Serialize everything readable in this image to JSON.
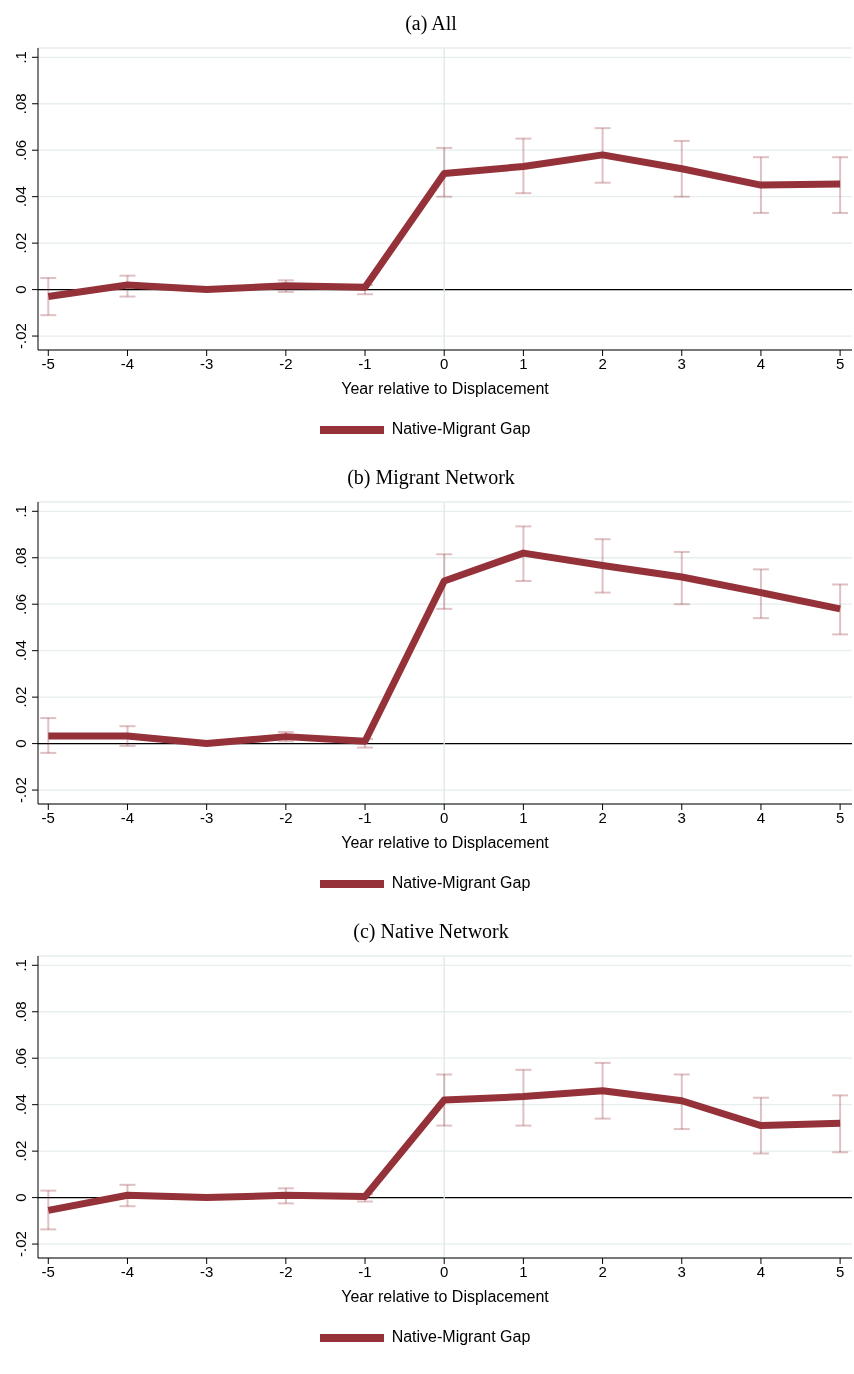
{
  "chart_data": [
    {
      "type": "line",
      "title": "(a)  All",
      "xlabel": "Year relative to Displacement",
      "x": [
        -5,
        -4,
        -3,
        -2,
        -1,
        0,
        1,
        2,
        3,
        4,
        5
      ],
      "xlim": [
        -5.13,
        5.15
      ],
      "xticks": [
        -5,
        -4,
        -3,
        -2,
        -1,
        0,
        1,
        2,
        3,
        4,
        5
      ],
      "ylim": [
        -0.026,
        0.104
      ],
      "yticks": [
        {
          "value": -0.02,
          "label": "-.02"
        },
        {
          "value": 0,
          "label": "0"
        },
        {
          "value": 0.02,
          "label": ".02"
        },
        {
          "value": 0.04,
          "label": ".04"
        },
        {
          "value": 0.06,
          "label": ".06"
        },
        {
          "value": 0.08,
          "label": ".08"
        },
        {
          "value": 0.1,
          "label": ".1"
        }
      ],
      "grid": "y",
      "legend": "bottom",
      "marker": "none",
      "line_style": "solid",
      "ref_lines": [
        {
          "axis": "y",
          "value": 0,
          "color": "#000000"
        },
        {
          "axis": "x",
          "value": 0,
          "color": "#dde9e9"
        }
      ],
      "series": [
        {
          "name": "Native-Migrant Gap",
          "color": "#943139",
          "values": [
            -0.003,
            0.002,
            0,
            0.0017,
            0.001,
            0.05,
            0.053,
            0.058,
            0.052,
            0.045,
            0.0455
          ],
          "errors": [
            [
              -0.011,
              0.005
            ],
            [
              -0.003,
              0.006
            ],
            null,
            [
              -0.001,
              0.004
            ],
            [
              -0.002,
              0.002
            ],
            [
              0.04,
              0.061
            ],
            [
              0.0415,
              0.065
            ],
            [
              0.046,
              0.0695
            ],
            [
              0.04,
              0.064
            ],
            [
              0.033,
              0.057
            ],
            [
              0.033,
              0.057
            ]
          ]
        }
      ]
    },
    {
      "type": "line",
      "title": "(b)  Migrant Network",
      "xlabel": "Year relative to Displacement",
      "x": [
        -5,
        -4,
        -3,
        -2,
        -1,
        0,
        1,
        2,
        3,
        4,
        5
      ],
      "xlim": [
        -5.13,
        5.15
      ],
      "xticks": [
        -5,
        -4,
        -3,
        -2,
        -1,
        0,
        1,
        2,
        3,
        4,
        5
      ],
      "ylim": [
        -0.026,
        0.104
      ],
      "yticks": [
        {
          "value": -0.02,
          "label": "-.02"
        },
        {
          "value": 0,
          "label": "0"
        },
        {
          "value": 0.02,
          "label": ".02"
        },
        {
          "value": 0.04,
          "label": ".04"
        },
        {
          "value": 0.06,
          "label": ".06"
        },
        {
          "value": 0.08,
          "label": ".08"
        },
        {
          "value": 0.1,
          "label": ".1"
        }
      ],
      "grid": "y",
      "legend": "bottom",
      "marker": "none",
      "line_style": "solid",
      "ref_lines": [
        {
          "axis": "y",
          "value": 0,
          "color": "#000000"
        },
        {
          "axis": "x",
          "value": 0,
          "color": "#dde9e9"
        }
      ],
      "series": [
        {
          "name": "Native-Migrant Gap",
          "color": "#943139",
          "values": [
            0.0033,
            0.0033,
            0,
            0.003,
            0.001,
            0.07,
            0.082,
            0.0767,
            0.0717,
            0.065,
            0.058
          ],
          "errors": [
            [
              -0.004,
              0.011
            ],
            [
              -0.001,
              0.0075
            ],
            null,
            [
              0.001,
              0.005
            ],
            [
              -0.0017,
              0.002
            ],
            [
              0.058,
              0.0815
            ],
            [
              0.07,
              0.0935
            ],
            [
              0.065,
              0.088
            ],
            [
              0.06,
              0.0825
            ],
            [
              0.054,
              0.075
            ],
            [
              0.047,
              0.0685
            ]
          ]
        }
      ]
    },
    {
      "type": "line",
      "title": "(c)  Native Network",
      "xlabel": "Year relative to Displacement",
      "x": [
        -5,
        -4,
        -3,
        -2,
        -1,
        0,
        1,
        2,
        3,
        4,
        5
      ],
      "xlim": [
        -5.13,
        5.15
      ],
      "xticks": [
        -5,
        -4,
        -3,
        -2,
        -1,
        0,
        1,
        2,
        3,
        4,
        5
      ],
      "ylim": [
        -0.026,
        0.104
      ],
      "yticks": [
        {
          "value": -0.02,
          "label": "-.02"
        },
        {
          "value": 0,
          "label": "0"
        },
        {
          "value": 0.02,
          "label": ".02"
        },
        {
          "value": 0.04,
          "label": ".04"
        },
        {
          "value": 0.06,
          "label": ".06"
        },
        {
          "value": 0.08,
          "label": ".08"
        },
        {
          "value": 0.1,
          "label": ".1"
        }
      ],
      "grid": "y",
      "legend": "bottom",
      "marker": "none",
      "line_style": "solid",
      "ref_lines": [
        {
          "axis": "y",
          "value": 0,
          "color": "#000000"
        },
        {
          "axis": "x",
          "value": 0,
          "color": "#dde9e9"
        }
      ],
      "series": [
        {
          "name": "Native-Migrant Gap",
          "color": "#943139",
          "values": [
            -0.0055,
            0.001,
            0,
            0.001,
            0.0005,
            0.042,
            0.0435,
            0.046,
            0.0417,
            0.031,
            0.032
          ],
          "errors": [
            [
              -0.0137,
              0.003
            ],
            [
              -0.0037,
              0.0055
            ],
            null,
            [
              -0.0025,
              0.004
            ],
            [
              -0.0017,
              0.0015
            ],
            [
              0.031,
              0.053
            ],
            [
              0.031,
              0.055
            ],
            [
              0.034,
              0.058
            ],
            [
              0.0295,
              0.053
            ],
            [
              0.019,
              0.043
            ],
            [
              0.0195,
              0.044
            ]
          ]
        }
      ]
    }
  ]
}
